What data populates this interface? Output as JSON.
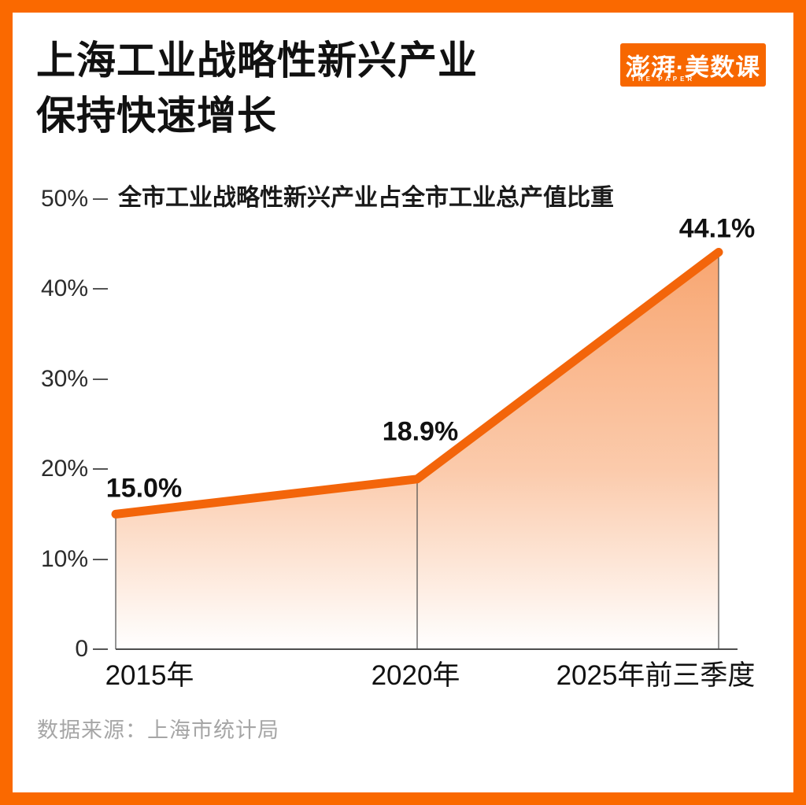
{
  "header": {
    "title_line1": "上海工业战略性新兴产业",
    "title_line2": "保持快速增长",
    "logo": {
      "text": "澎湃·美数课",
      "subtext": "THE PAPER"
    }
  },
  "chart_data": {
    "type": "area",
    "title": "全市工业战略性新兴产业占全市工业总产值比重",
    "categories": [
      "2015年",
      "2020年",
      "2025年前三季度"
    ],
    "values": [
      15.0,
      18.9,
      44.1
    ],
    "value_labels": [
      "15.0%",
      "18.9%",
      "44.1%"
    ],
    "ylim": [
      0,
      50
    ],
    "yticks": [
      50,
      40,
      30,
      20,
      10,
      0
    ],
    "ytick_labels": [
      "50%",
      "40%",
      "30%",
      "20%",
      "10%",
      "0"
    ],
    "legend": "none",
    "grid": "off",
    "line_color": "#F3650A",
    "area_gradient_top": "#F3650A",
    "area_gradient_bottom": "#FFFFFF",
    "axis_color": "#4D4D4D"
  },
  "source": {
    "label": "数据来源：上海市统计局"
  },
  "colors": {
    "brand_orange": "#FA6900",
    "text_dark": "#111111",
    "text_muted": "#A6A6A6"
  }
}
